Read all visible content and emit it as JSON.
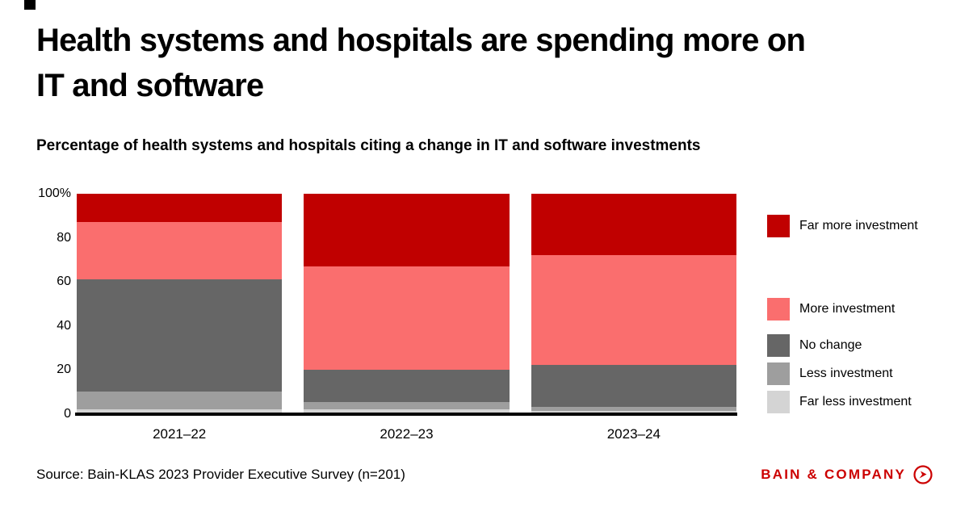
{
  "brand": {
    "logo_text": "BAIN & COMPANY",
    "logo_color": "#cc0000"
  },
  "header": {
    "title": "Health systems and hospitals are spending more on IT and software",
    "subtitle": "Percentage of health systems and hospitals citing a change in IT and software investments"
  },
  "footer": {
    "source": "Source: Bain-KLAS 2023 Provider Executive Survey (n=201)"
  },
  "chart_data": {
    "type": "bar",
    "stacked": true,
    "title": "Percentage of health systems and hospitals citing a change in IT and software investments",
    "categories": [
      "2021–22",
      "2022–23",
      "2023–24"
    ],
    "series": [
      {
        "name": "Far less investment",
        "color": "#d4d4d4",
        "values": [
          2,
          2,
          1
        ]
      },
      {
        "name": "Less investment",
        "color": "#9e9e9e",
        "values": [
          8,
          3,
          2
        ]
      },
      {
        "name": "No change",
        "color": "#666666",
        "values": [
          51,
          15,
          19
        ]
      },
      {
        "name": "More investment",
        "color": "#fa6e6e",
        "values": [
          26,
          47,
          50
        ]
      },
      {
        "name": "Far more investment",
        "color": "#c00000",
        "values": [
          13,
          33,
          28
        ]
      }
    ],
    "ylim": [
      0,
      100
    ],
    "yticks": [
      "100%",
      "80",
      "60",
      "40",
      "20",
      "0"
    ],
    "legend": [
      "Far more investment",
      "More investment",
      "No change",
      "Less investment",
      "Far less investment"
    ],
    "legend_position": "right",
    "grid": false,
    "xlabel": "",
    "ylabel": ""
  }
}
